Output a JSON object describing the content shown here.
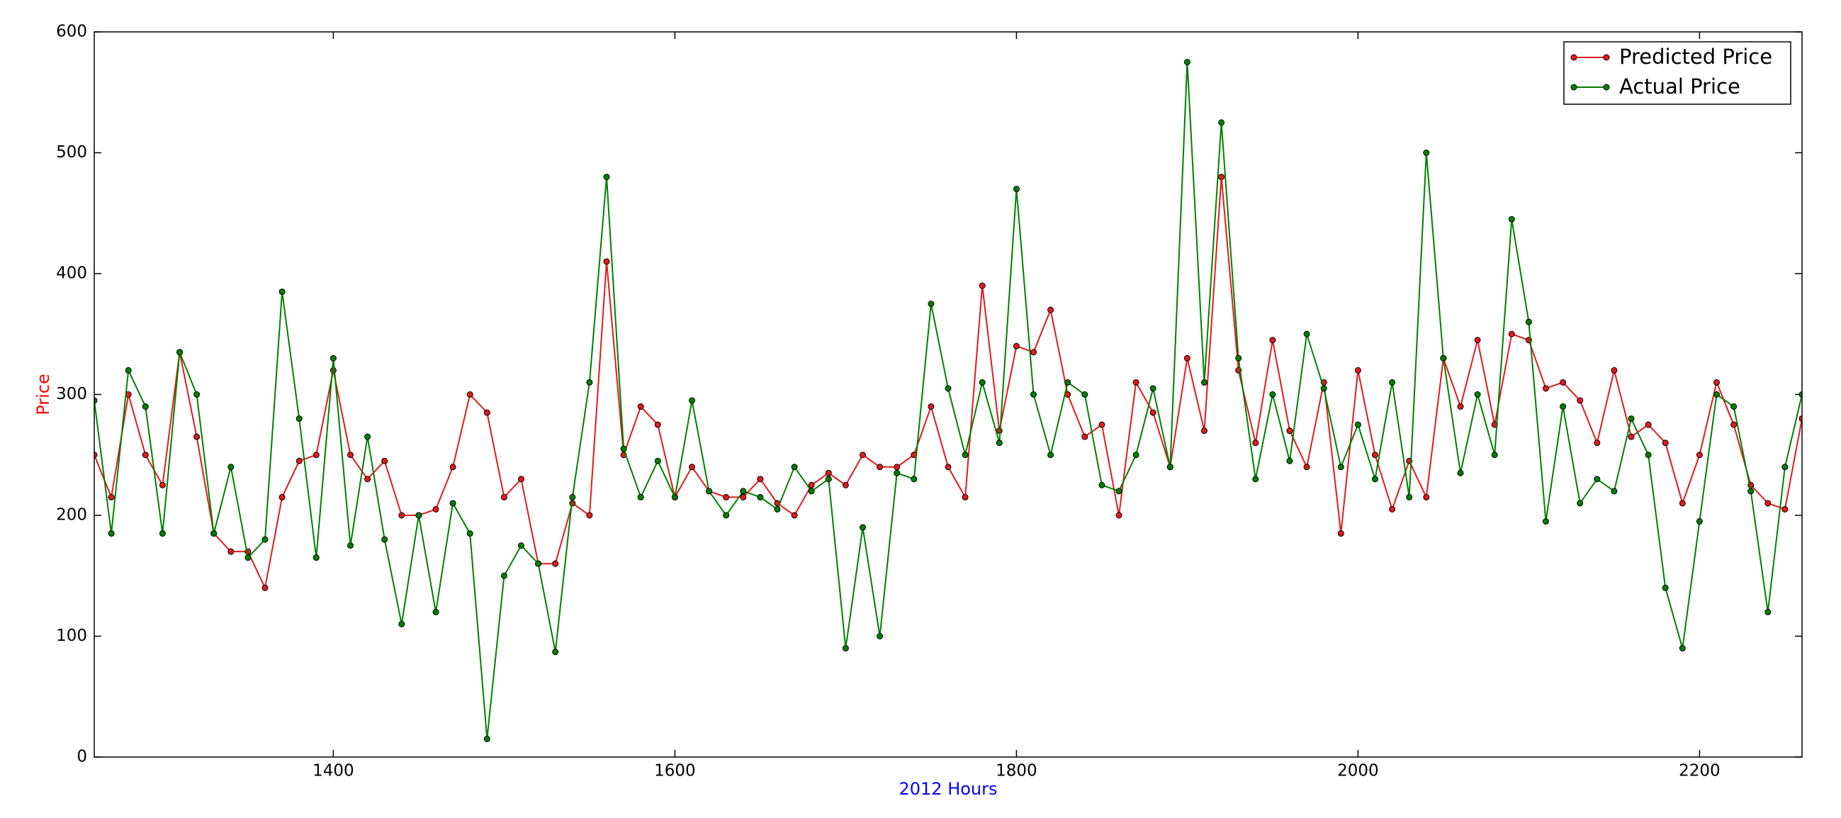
{
  "chart_data": {
    "type": "line",
    "xlabel": "2012 Hours",
    "ylabel": "Price",
    "xlabel_color": "#0000ff",
    "ylabel_color": "#ff0000",
    "legend": "upper right",
    "grid": false,
    "xlim": [
      1260,
      2260
    ],
    "xticks": [
      1400,
      1600,
      1800,
      2000,
      2200
    ],
    "ylim": [
      0,
      600
    ],
    "yticks": [
      0,
      100,
      200,
      300,
      400,
      500,
      600
    ],
    "x": [
      1260,
      1270,
      1280,
      1290,
      1300,
      1310,
      1320,
      1330,
      1340,
      1350,
      1360,
      1370,
      1380,
      1390,
      1400,
      1410,
      1420,
      1430,
      1440,
      1450,
      1460,
      1470,
      1480,
      1490,
      1500,
      1510,
      1520,
      1530,
      1540,
      1550,
      1560,
      1570,
      1580,
      1590,
      1600,
      1610,
      1620,
      1630,
      1640,
      1650,
      1660,
      1670,
      1680,
      1690,
      1700,
      1710,
      1720,
      1730,
      1740,
      1750,
      1760,
      1770,
      1780,
      1790,
      1800,
      1810,
      1820,
      1830,
      1840,
      1850,
      1860,
      1870,
      1880,
      1890,
      1900,
      1910,
      1920,
      1930,
      1940,
      1950,
      1960,
      1970,
      1980,
      1990,
      2000,
      2010,
      2020,
      2030,
      2040,
      2050,
      2060,
      2070,
      2080,
      2090,
      2100,
      2110,
      2120,
      2130,
      2140,
      2150,
      2160,
      2170,
      2180,
      2190,
      2200,
      2210,
      2220,
      2230,
      2240,
      2250,
      2260
    ],
    "series": [
      {
        "name": "Predicted Price",
        "color": "#e31a1c",
        "values": [
          250,
          215,
          300,
          250,
          225,
          335,
          265,
          185,
          170,
          170,
          140,
          215,
          245,
          250,
          320,
          250,
          230,
          245,
          200,
          200,
          205,
          240,
          300,
          285,
          215,
          230,
          160,
          160,
          210,
          200,
          410,
          250,
          290,
          275,
          215,
          240,
          220,
          215,
          215,
          230,
          210,
          200,
          225,
          235,
          225,
          250,
          240,
          240,
          250,
          290,
          240,
          215,
          390,
          270,
          340,
          335,
          370,
          300,
          265,
          275,
          200,
          310,
          285,
          240,
          330,
          270,
          480,
          320,
          260,
          345,
          270,
          240,
          310,
          185,
          320,
          250,
          205,
          245,
          215,
          330,
          290,
          345,
          275,
          350,
          345,
          305,
          310,
          295,
          260,
          320,
          265,
          275,
          260,
          210,
          250,
          310,
          275,
          225,
          210,
          205,
          280
        ]
      },
      {
        "name": "Actual Price",
        "color": "#008000",
        "values": [
          295,
          185,
          320,
          290,
          185,
          335,
          300,
          185,
          240,
          165,
          180,
          385,
          280,
          165,
          330,
          175,
          265,
          180,
          110,
          200,
          120,
          210,
          185,
          15,
          150,
          175,
          160,
          87,
          215,
          310,
          480,
          255,
          215,
          245,
          215,
          295,
          220,
          200,
          220,
          215,
          205,
          240,
          220,
          230,
          90,
          190,
          100,
          235,
          230,
          375,
          305,
          250,
          310,
          260,
          470,
          300,
          250,
          310,
          300,
          225,
          220,
          250,
          305,
          240,
          575,
          310,
          525,
          330,
          230,
          300,
          245,
          350,
          305,
          240,
          275,
          230,
          310,
          215,
          500,
          330,
          235,
          300,
          250,
          445,
          360,
          195,
          290,
          210,
          230,
          220,
          280,
          250,
          140,
          90,
          195,
          300,
          290,
          220,
          120,
          240,
          300
        ]
      }
    ]
  }
}
